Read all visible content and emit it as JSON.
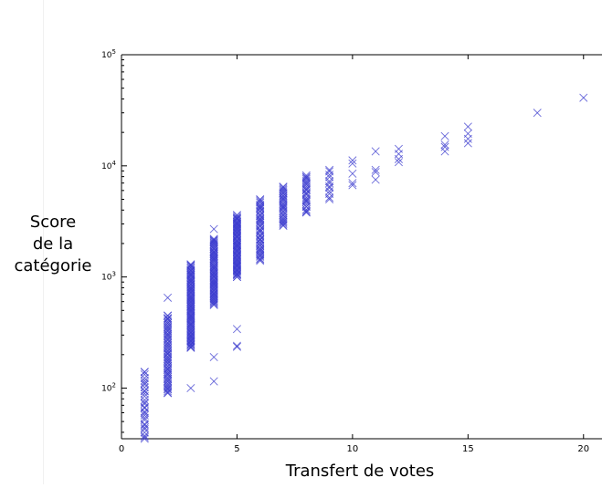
{
  "chart_data": {
    "type": "scatter",
    "xlabel": "Transfert de votes",
    "ylabel": "Score\nde la\ncatégorie",
    "xlim": [
      0,
      20.8
    ],
    "ylim": [
      35,
      100000
    ],
    "yscale": "log",
    "x_ticks": [
      0,
      5,
      10,
      15,
      20
    ],
    "y_ticks": [
      {
        "value": 100,
        "base": "10",
        "exp": "2"
      },
      {
        "value": 1000,
        "base": "10",
        "exp": "3"
      },
      {
        "value": 10000,
        "base": "10",
        "exp": "4"
      },
      {
        "value": 100000,
        "base": "10",
        "exp": "5"
      }
    ],
    "marker": "x",
    "marker_color": "#3a3acd",
    "grid": false,
    "groups": [
      {
        "x": 1,
        "n": 28,
        "min": 35,
        "max": 140
      },
      {
        "x": 2,
        "n": 60,
        "min": 90,
        "max": 450,
        "extra": [
          650
        ]
      },
      {
        "x": 3,
        "n": 90,
        "min": 230,
        "max": 1300,
        "extra": [
          100
        ]
      },
      {
        "x": 4,
        "n": 70,
        "min": 560,
        "max": 2200,
        "extra": [
          2700,
          190,
          115
        ]
      },
      {
        "x": 5,
        "n": 70,
        "min": 1000,
        "max": 3600,
        "extra": [
          340,
          240,
          235
        ]
      },
      {
        "x": 6,
        "n": 45,
        "min": 1400,
        "max": 5000
      },
      {
        "x": 7,
        "n": 30,
        "min": 2900,
        "max": 6500
      },
      {
        "x": 8,
        "n": 25,
        "min": 3800,
        "max": 8200
      },
      {
        "x": 9,
        "n": 10,
        "min": 5000,
        "max": 9200
      }
    ],
    "points": [
      {
        "x": 10,
        "y": 6700
      },
      {
        "x": 10,
        "y": 7000
      },
      {
        "x": 10,
        "y": 8500
      },
      {
        "x": 10,
        "y": 10500
      },
      {
        "x": 10,
        "y": 11200
      },
      {
        "x": 11,
        "y": 7500
      },
      {
        "x": 11,
        "y": 8800
      },
      {
        "x": 11,
        "y": 9200
      },
      {
        "x": 11,
        "y": 13500
      },
      {
        "x": 12,
        "y": 10800
      },
      {
        "x": 12,
        "y": 11500
      },
      {
        "x": 12,
        "y": 12800
      },
      {
        "x": 12,
        "y": 14200
      },
      {
        "x": 14,
        "y": 13500
      },
      {
        "x": 14,
        "y": 14800
      },
      {
        "x": 14,
        "y": 15500
      },
      {
        "x": 14,
        "y": 18500
      },
      {
        "x": 15,
        "y": 16000
      },
      {
        "x": 15,
        "y": 17500
      },
      {
        "x": 15,
        "y": 19500
      },
      {
        "x": 15,
        "y": 22500
      },
      {
        "x": 18,
        "y": 30000
      },
      {
        "x": 20,
        "y": 41000
      }
    ]
  }
}
